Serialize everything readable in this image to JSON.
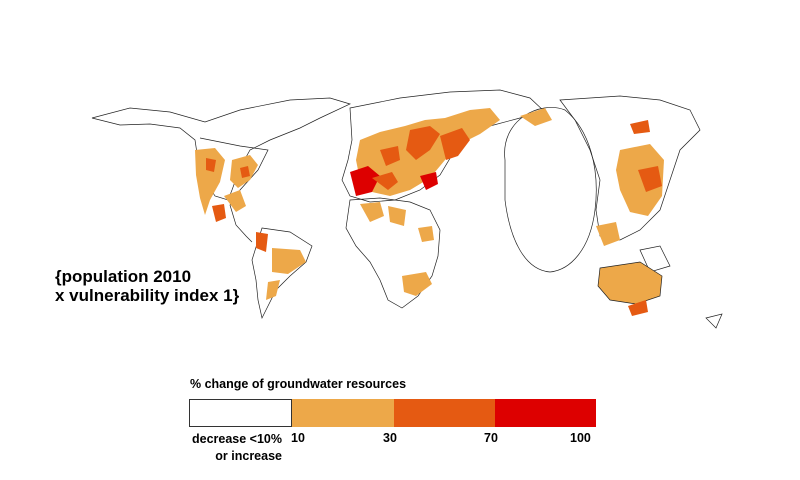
{
  "map": {
    "caption_line1": "{population 2010",
    "caption_line2": "x vulnerability index 1}"
  },
  "legend": {
    "title": "% change of groundwater resources",
    "bins": [
      {
        "label_line1": "decrease <10%",
        "label_line2": "or increase",
        "color": "#ffffff"
      },
      {
        "label": "10",
        "color": "#eda849"
      },
      {
        "label": "30",
        "color": "#e55a12"
      },
      {
        "label": "70",
        "color": "#dd0000"
      },
      {
        "label": "100"
      }
    ]
  },
  "colors": {
    "outline": "#222222",
    "low": "#eda849",
    "medium": "#e55a12",
    "high": "#dd0000"
  }
}
